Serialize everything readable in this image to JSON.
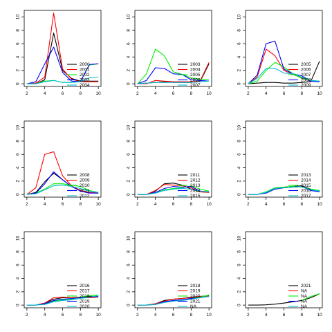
{
  "chart_data": [
    {
      "type": "line",
      "x": [
        2,
        3,
        4,
        5,
        6,
        7,
        8,
        9,
        10
      ],
      "xlim": [
        1.7,
        10.3
      ],
      "ylim": [
        -0.4,
        11
      ],
      "x_ticks": [
        2,
        4,
        6,
        8,
        10
      ],
      "y_ticks": [
        0,
        2,
        4,
        6,
        8,
        10
      ],
      "legend_position": "right",
      "grid": false,
      "series": [
        {
          "name": "2000",
          "color": "#000000",
          "values": [
            0,
            0,
            0.6,
            7.6,
            2.0,
            0.8,
            0.4,
            0.4,
            0.4
          ]
        },
        {
          "name": "2001",
          "color": "#ff0000",
          "values": [
            0,
            0.1,
            1.0,
            10.6,
            2.2,
            0.7,
            0.3,
            0.3,
            0.3
          ]
        },
        {
          "name": "2002",
          "color": "#00ee00",
          "values": [
            0,
            0,
            0.4,
            0.5,
            0.2,
            0.2,
            0.4,
            2.8,
            3.0
          ]
        },
        {
          "name": "2003",
          "color": "#0000ff",
          "values": [
            0,
            0.3,
            3.0,
            5.5,
            1.7,
            0.4,
            0.3,
            2.9,
            3.0
          ]
        },
        {
          "name": "2004",
          "color": "#00bcd4",
          "values": [
            0,
            0,
            0.3,
            0.5,
            0.2,
            0.2,
            0.3,
            0.9,
            1.0
          ]
        }
      ]
    },
    {
      "type": "line",
      "x": [
        2,
        3,
        4,
        5,
        6,
        7,
        8,
        9,
        10
      ],
      "xlim": [
        1.7,
        10.3
      ],
      "ylim": [
        -0.4,
        11
      ],
      "x_ticks": [
        2,
        4,
        6,
        8,
        10
      ],
      "y_ticks": [
        0,
        2,
        4,
        6,
        8,
        10
      ],
      "legend_position": "right",
      "grid": false,
      "series": [
        {
          "name": "2003",
          "color": "#000000",
          "values": [
            0,
            0.1,
            0.2,
            0.3,
            0.2,
            0.2,
            0.2,
            0.3,
            3.0
          ]
        },
        {
          "name": "2004",
          "color": "#ff0000",
          "values": [
            0,
            0,
            0.5,
            0.4,
            0.3,
            0.3,
            0.3,
            0.4,
            3.2
          ]
        },
        {
          "name": "2005",
          "color": "#00ee00",
          "values": [
            0,
            1.5,
            5.2,
            4.2,
            1.8,
            1.4,
            0.9,
            0.7,
            0.6
          ]
        },
        {
          "name": "2006",
          "color": "#0000ff",
          "values": [
            0,
            0.5,
            2.4,
            2.3,
            1.5,
            1.4,
            0.6,
            0.5,
            0.4
          ]
        },
        {
          "name": "2007",
          "color": "#00bcd4",
          "values": [
            0,
            0.1,
            0.2,
            0.2,
            0.2,
            0.2,
            0.2,
            0.3,
            0.4
          ]
        }
      ]
    },
    {
      "type": "line",
      "x": [
        2,
        3,
        4,
        5,
        6,
        7,
        8,
        9,
        10
      ],
      "xlim": [
        1.7,
        10.3
      ],
      "ylim": [
        -0.4,
        11
      ],
      "x_ticks": [
        2,
        4,
        6,
        8,
        10
      ],
      "y_ticks": [
        0,
        2,
        4,
        6,
        8,
        10
      ],
      "legend_position": "right",
      "grid": false,
      "series": [
        {
          "name": "2005",
          "color": "#000000",
          "values": [
            0,
            0.1,
            0.2,
            0.2,
            0.1,
            0.1,
            0.2,
            0.3,
            3.4
          ]
        },
        {
          "name": "2006",
          "color": "#ff0000",
          "values": [
            0,
            1.0,
            5.2,
            4.2,
            2.0,
            1.4,
            0.9,
            0.4,
            0.3
          ]
        },
        {
          "name": "2007",
          "color": "#00ee00",
          "values": [
            0,
            0.4,
            2.0,
            3.2,
            2.5,
            1.5,
            0.8,
            0.5,
            0.4
          ]
        },
        {
          "name": "2008",
          "color": "#0000ff",
          "values": [
            0,
            1.3,
            6.0,
            6.4,
            2.2,
            1.5,
            1.2,
            0.4,
            0.3
          ]
        },
        {
          "name": "2009",
          "color": "#00bcd4",
          "values": [
            0,
            0.8,
            2.3,
            2.3,
            1.6,
            1.5,
            1.0,
            0.5,
            0.4
          ]
        }
      ]
    },
    {
      "type": "line",
      "x": [
        2,
        3,
        4,
        5,
        6,
        7,
        8,
        9,
        10
      ],
      "xlim": [
        1.7,
        10.3
      ],
      "ylim": [
        -0.4,
        11
      ],
      "x_ticks": [
        2,
        4,
        6,
        8,
        10
      ],
      "y_ticks": [
        0,
        2,
        4,
        6,
        8,
        10
      ],
      "legend_position": "right",
      "grid": false,
      "series": [
        {
          "name": "2008",
          "color": "#000000",
          "values": [
            0,
            0.3,
            1.9,
            3.2,
            2.2,
            1.2,
            0.6,
            0.3,
            0.2
          ]
        },
        {
          "name": "2009",
          "color": "#ff0000",
          "values": [
            0,
            1.0,
            6.0,
            6.4,
            2.8,
            1.3,
            0.6,
            0.3,
            0.2
          ]
        },
        {
          "name": "2010",
          "color": "#00ee00",
          "values": [
            0,
            0.2,
            0.8,
            1.6,
            1.6,
            1.4,
            1.2,
            0.6,
            0.3
          ]
        },
        {
          "name": "2011",
          "color": "#0000ff",
          "values": [
            0,
            0.2,
            1.6,
            3.4,
            2.2,
            1.2,
            0.5,
            0.2,
            0.2
          ]
        },
        {
          "name": "2012",
          "color": "#00bcd4",
          "values": [
            0,
            0.1,
            0.7,
            1.3,
            1.4,
            1.2,
            0.9,
            0.5,
            0.3
          ]
        }
      ]
    },
    {
      "type": "line",
      "x": [
        2,
        3,
        4,
        5,
        6,
        7,
        8,
        9,
        10
      ],
      "xlim": [
        1.7,
        10.3
      ],
      "ylim": [
        -0.4,
        11
      ],
      "x_ticks": [
        2,
        4,
        6,
        8,
        10
      ],
      "y_ticks": [
        0,
        2,
        4,
        6,
        8,
        10
      ],
      "legend_position": "right",
      "grid": false,
      "series": [
        {
          "name": "2011",
          "color": "#000000",
          "values": [
            0,
            0,
            0.5,
            1.6,
            1.7,
            1.4,
            0.8,
            0.4,
            0.3
          ]
        },
        {
          "name": "2012",
          "color": "#ff0000",
          "values": [
            0,
            0,
            0.6,
            1.5,
            1.4,
            1.3,
            1.0,
            0.4,
            0.3
          ]
        },
        {
          "name": "2013",
          "color": "#00ee00",
          "values": [
            0,
            0,
            0.2,
            0.7,
            0.9,
            1.0,
            1.3,
            0.8,
            0.5
          ]
        },
        {
          "name": "2014",
          "color": "#0000ff",
          "values": [
            0,
            0,
            0.3,
            0.9,
            1.2,
            1.1,
            1.2,
            0.5,
            0.4
          ]
        },
        {
          "name": "2015",
          "color": "#00bcd4",
          "values": [
            0,
            0,
            0.2,
            0.6,
            0.8,
            0.9,
            0.8,
            0.5,
            0.4
          ]
        }
      ]
    },
    {
      "type": "line",
      "x": [
        2,
        3,
        4,
        5,
        6,
        7,
        8,
        9,
        10
      ],
      "xlim": [
        1.7,
        10.3
      ],
      "ylim": [
        -0.4,
        11
      ],
      "x_ticks": [
        2,
        4,
        6,
        8,
        10
      ],
      "y_ticks": [
        0,
        2,
        4,
        6,
        8,
        10
      ],
      "legend_position": "right",
      "grid": false,
      "series": [
        {
          "name": "2013",
          "color": "#000000",
          "values": [
            0,
            0,
            0.3,
            0.9,
            1.1,
            1.2,
            1.3,
            0.8,
            0.5
          ]
        },
        {
          "name": "2014",
          "color": "#ff0000",
          "values": [
            0,
            0,
            0.3,
            0.8,
            1.0,
            1.1,
            1.2,
            0.7,
            0.5
          ]
        },
        {
          "name": "2015",
          "color": "#00ee00",
          "values": [
            0,
            0,
            0.4,
            1.0,
            1.1,
            1.2,
            1.1,
            0.8,
            0.6
          ]
        },
        {
          "name": "2016",
          "color": "#0000ff",
          "values": [
            0,
            0,
            0.2,
            0.8,
            1.0,
            1.1,
            1.2,
            0.6,
            0.4
          ]
        },
        {
          "name": "2017",
          "color": "#00bcd4",
          "values": [
            0,
            0,
            0.3,
            0.9,
            1.0,
            1.1,
            1.2,
            0.7,
            0.5
          ]
        }
      ]
    },
    {
      "type": "line",
      "x": [
        2,
        3,
        4,
        5,
        6,
        7,
        8,
        9,
        10
      ],
      "xlim": [
        1.7,
        10.3
      ],
      "ylim": [
        -0.4,
        11
      ],
      "x_ticks": [
        2,
        4,
        6,
        8,
        10
      ],
      "y_ticks": [
        0,
        2,
        4,
        6,
        8,
        10
      ],
      "legend_position": "right",
      "grid": false,
      "series": [
        {
          "name": "2016",
          "color": "#000000",
          "values": [
            0,
            0,
            0.3,
            0.9,
            1.1,
            1.1,
            1.2,
            1.3,
            1.3
          ]
        },
        {
          "name": "2017",
          "color": "#ff0000",
          "values": [
            0,
            0,
            0.3,
            1.1,
            1.2,
            1.1,
            1.2,
            1.1,
            1.2
          ]
        },
        {
          "name": "2018",
          "color": "#00ee00",
          "values": [
            0,
            0,
            0.2,
            0.6,
            0.8,
            0.9,
            1.2,
            1.4,
            1.5
          ]
        },
        {
          "name": "2019",
          "color": "#0000ff",
          "values": [
            0,
            0,
            0.2,
            0.7,
            0.9,
            1.0,
            1.1,
            1.2,
            1.3
          ]
        },
        {
          "name": "2020",
          "color": "#00bcd4",
          "values": [
            0,
            0,
            0.1,
            0.5,
            0.7,
            0.8,
            1.0,
            1.2,
            1.4
          ]
        }
      ]
    },
    {
      "type": "line",
      "x": [
        2,
        3,
        4,
        5,
        6,
        7,
        8,
        9,
        10
      ],
      "xlim": [
        1.7,
        10.3
      ],
      "ylim": [
        -0.4,
        11
      ],
      "x_ticks": [
        2,
        4,
        6,
        8,
        10
      ],
      "y_ticks": [
        0,
        2,
        4,
        6,
        8,
        10
      ],
      "legend_position": "right",
      "grid": false,
      "series": [
        {
          "name": "2018",
          "color": "#000000",
          "values": [
            0,
            0,
            0.2,
            0.7,
            0.9,
            1.0,
            1.2,
            1.3,
            1.4
          ]
        },
        {
          "name": "2019",
          "color": "#ff0000",
          "values": [
            0,
            0,
            0.2,
            0.6,
            0.9,
            1.0,
            1.1,
            1.3,
            1.3
          ]
        },
        {
          "name": "2020",
          "color": "#00ee00",
          "values": [
            0,
            0,
            0.1,
            0.5,
            0.7,
            0.8,
            1.0,
            1.2,
            1.5
          ]
        },
        {
          "name": "2021",
          "color": "#0000ff",
          "values": [
            0,
            0,
            0.1,
            0.5,
            0.7,
            0.8,
            1.0,
            1.1,
            1.3
          ]
        },
        {
          "name": "NA",
          "color": "#00bcd4",
          "values": [
            0,
            0,
            0.1,
            0.4,
            0.6,
            0.7,
            0.9,
            1.1,
            1.3
          ]
        }
      ]
    },
    {
      "type": "line",
      "x": [
        2,
        3,
        4,
        5,
        6,
        7,
        8,
        9,
        10
      ],
      "xlim": [
        1.7,
        10.3
      ],
      "ylim": [
        -0.4,
        11
      ],
      "x_ticks": [
        2,
        4,
        6,
        8,
        10
      ],
      "y_ticks": [
        0,
        2,
        4,
        6,
        8,
        10
      ],
      "legend_position": "right",
      "grid": false,
      "series": [
        {
          "name": "2021",
          "color": "#000000",
          "values": [
            0,
            0,
            0.05,
            0.15,
            0.3,
            0.5,
            0.7,
            1.1,
            1.7
          ]
        },
        {
          "name": "NA",
          "color": "#ff0000",
          "values": [
            null,
            null,
            null,
            null,
            null,
            null,
            null,
            null,
            null
          ]
        },
        {
          "name": "NA",
          "color": "#00ee00",
          "values": [
            null,
            null,
            null,
            null,
            null,
            null,
            0.7,
            1.3,
            1.7
          ]
        },
        {
          "name": "NA",
          "color": "#0000ff",
          "values": [
            null,
            null,
            null,
            null,
            null,
            null,
            null,
            null,
            null
          ]
        },
        {
          "name": "NA",
          "color": "#00bcd4",
          "values": [
            null,
            null,
            null,
            null,
            null,
            null,
            null,
            null,
            null
          ]
        }
      ]
    }
  ]
}
